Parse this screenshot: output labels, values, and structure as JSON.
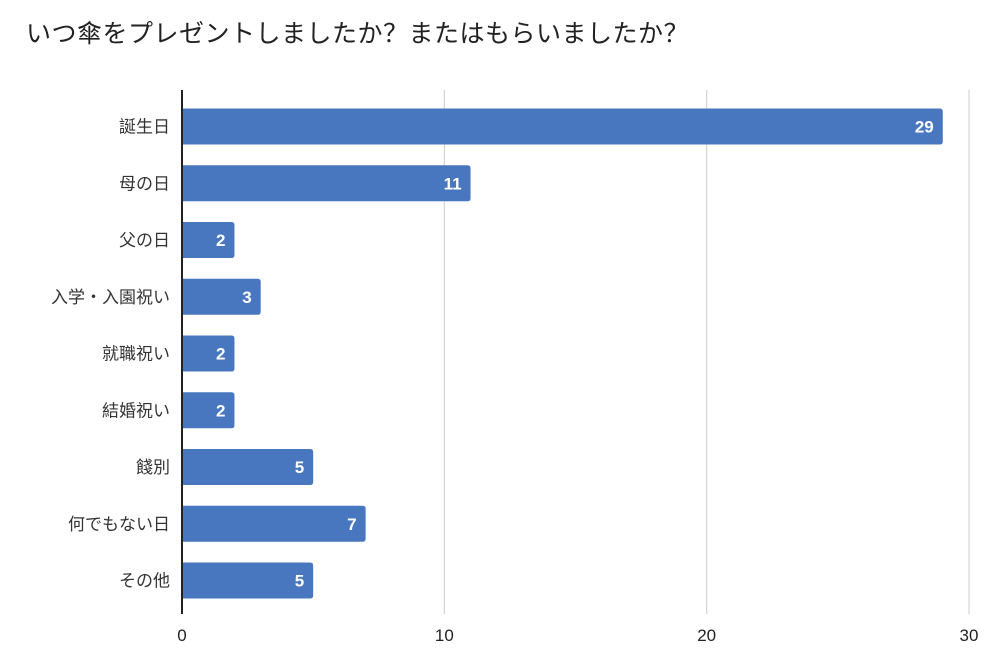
{
  "chart_data": {
    "type": "bar",
    "orientation": "horizontal",
    "title": "いつ傘をプレゼントしましたか？またはもらいましたか？",
    "categories": [
      "誕生日",
      "母の日",
      "父の日",
      "入学・入園祝い",
      "就職祝い",
      "結婚祝い",
      "餞別",
      "何でもない日",
      "その他"
    ],
    "values": [
      29,
      11,
      2,
      3,
      2,
      2,
      5,
      7,
      5
    ],
    "xlim": [
      0,
      30
    ],
    "xticks": [
      "0",
      "10",
      "20",
      "30"
    ],
    "grid": true,
    "legend": "none",
    "bar_color": "#4877bf",
    "xlabel": "",
    "ylabel": ""
  }
}
